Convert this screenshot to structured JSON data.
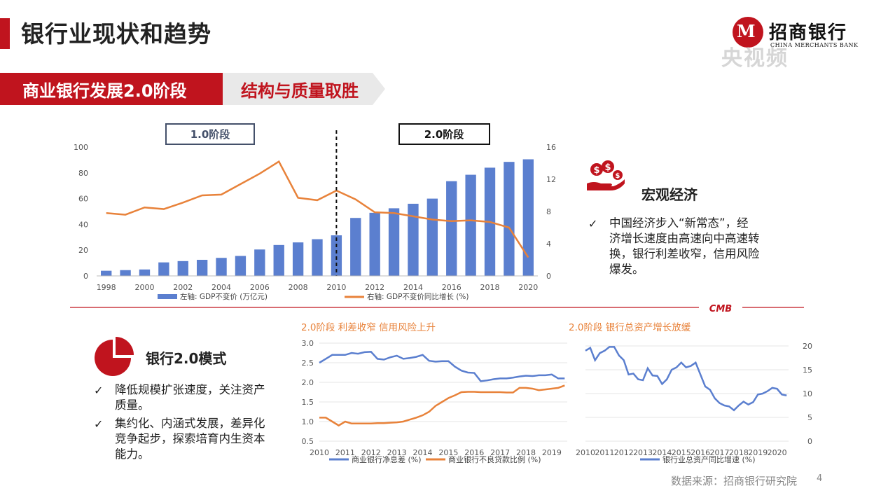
{
  "header": {
    "title": "银行业现状和趋势",
    "logo_cn": "招商银行",
    "logo_en": "CHINA MERCHANTS BANK",
    "watermark": "央视频"
  },
  "phase_banner": {
    "left_label": "商业银行发展2.0阶段",
    "right_label": "结构与质量取胜"
  },
  "macro": {
    "title": "宏观经济",
    "bullets": [
      [
        "中国经济步入“新常态”，经",
        "济增长速度由高速向中高速转",
        "换，银行利差收窄，信用风险",
        "爆发。"
      ]
    ]
  },
  "model": {
    "title": "银行2.0模式",
    "bullets": [
      [
        "降低规模扩张速度，关注资产",
        "质量。"
      ],
      [
        "集约化、内涵式发展，差异化",
        "竞争起步，探索培育内生资本",
        "能力。"
      ]
    ]
  },
  "divider": {
    "mark": "CMB"
  },
  "footer": {
    "source": "数据来源：招商银行研究院",
    "page": "4"
  },
  "colors": {
    "brand_red": "#c0141e",
    "blue": "#5b7fcf",
    "orange": "#e8823a"
  },
  "chart_data": [
    {
      "type": "bar+line",
      "stage_labels": [
        "1.0阶段",
        "2.0阶段"
      ],
      "divider_at": "2010",
      "categories": [
        "1998",
        "1999",
        "2000",
        "2001",
        "2002",
        "2003",
        "2004",
        "2005",
        "2006",
        "2007",
        "2008",
        "2009",
        "2010",
        "2011",
        "2012",
        "2013",
        "2014",
        "2015",
        "2016",
        "2017",
        "2018",
        "2019",
        "2020"
      ],
      "x_ticks": [
        "1998",
        "2000",
        "2002",
        "2004",
        "2006",
        "2008",
        "2010",
        "2012",
        "2014",
        "2016",
        "2018",
        "2020"
      ],
      "series": [
        {
          "name": "左轴: GDP不变价 (万亿元)",
          "axis": "left",
          "kind": "bar",
          "values": [
            4,
            4.5,
            5,
            10.5,
            11.5,
            12.5,
            14,
            15.5,
            20.5,
            24,
            26,
            28.5,
            31.5,
            45,
            49,
            52.5,
            56,
            60,
            73.5,
            78.5,
            84,
            88.5,
            90.5
          ]
        },
        {
          "name": "右轴: GDP不变价同比增长 (%)",
          "axis": "right",
          "kind": "line",
          "values": [
            7.8,
            7.6,
            8.5,
            8.3,
            9.1,
            10.0,
            10.1,
            11.4,
            12.7,
            14.2,
            9.7,
            9.4,
            10.6,
            9.5,
            7.9,
            7.8,
            7.4,
            7.0,
            6.8,
            6.9,
            6.7,
            6.0,
            2.3
          ]
        }
      ],
      "left_axis": {
        "ticks": [
          "0",
          "20",
          "40",
          "60",
          "80",
          "100"
        ],
        "range": [
          0,
          100
        ]
      },
      "right_axis": {
        "ticks": [
          "0",
          "4",
          "8",
          "12",
          "16"
        ],
        "range": [
          0,
          16
        ]
      }
    },
    {
      "type": "line",
      "title": "2.0阶段 利差收窄 信用风险上升",
      "x_ticks": [
        "2010",
        "2011",
        "2012",
        "2013",
        "2014",
        "2015",
        "2016",
        "2017",
        "2018",
        "2019"
      ],
      "x_range": [
        2010,
        2019.6
      ],
      "y_ticks": [
        "0.5",
        "1.0",
        "1.5",
        "2.0",
        "2.5",
        "3.0"
      ],
      "ylim": [
        0.5,
        3.0
      ],
      "series": [
        {
          "name": "商业银行净息差 (%)",
          "x": [
            2010.0,
            2010.25,
            2010.5,
            2010.75,
            2011.0,
            2011.25,
            2011.5,
            2011.75,
            2012.0,
            2012.25,
            2012.5,
            2012.75,
            2013.0,
            2013.25,
            2013.5,
            2013.75,
            2014.0,
            2014.25,
            2014.5,
            2014.75,
            2015.0,
            2015.25,
            2015.5,
            2015.75,
            2016.0,
            2016.25,
            2016.5,
            2016.75,
            2017.0,
            2017.25,
            2017.5,
            2017.75,
            2018.0,
            2018.25,
            2018.5,
            2018.75,
            2019.0,
            2019.25,
            2019.5
          ],
          "y": [
            2.5,
            2.6,
            2.7,
            2.7,
            2.7,
            2.75,
            2.73,
            2.77,
            2.78,
            2.6,
            2.58,
            2.64,
            2.68,
            2.6,
            2.62,
            2.65,
            2.7,
            2.55,
            2.53,
            2.54,
            2.54,
            2.4,
            2.3,
            2.25,
            2.24,
            2.03,
            2.05,
            2.08,
            2.1,
            2.1,
            2.12,
            2.15,
            2.17,
            2.16,
            2.18,
            2.18,
            2.2,
            2.1,
            2.1
          ]
        },
        {
          "name": "商业银行不良贷款比例 (%)",
          "x": [
            2010.0,
            2010.25,
            2010.5,
            2010.75,
            2011.0,
            2011.25,
            2011.5,
            2011.75,
            2012.0,
            2012.25,
            2012.5,
            2012.75,
            2013.0,
            2013.25,
            2013.5,
            2013.75,
            2014.0,
            2014.25,
            2014.5,
            2014.75,
            2015.0,
            2015.25,
            2015.5,
            2015.75,
            2016.0,
            2016.25,
            2016.5,
            2016.75,
            2017.0,
            2017.25,
            2017.5,
            2017.75,
            2018.0,
            2018.25,
            2018.5,
            2018.75,
            2019.0,
            2019.25,
            2019.5
          ],
          "y": [
            1.1,
            1.1,
            1.0,
            0.9,
            1.0,
            0.95,
            0.95,
            0.95,
            0.95,
            0.96,
            0.96,
            0.97,
            0.98,
            1.0,
            1.05,
            1.1,
            1.16,
            1.25,
            1.4,
            1.5,
            1.6,
            1.67,
            1.75,
            1.76,
            1.76,
            1.75,
            1.75,
            1.75,
            1.75,
            1.74,
            1.74,
            1.86,
            1.86,
            1.84,
            1.8,
            1.82,
            1.84,
            1.86,
            1.92
          ]
        }
      ]
    },
    {
      "type": "line",
      "title": "2.0阶段 银行总资产增长放缓",
      "x_ticks": [
        "2010",
        "2011",
        "2012",
        "2013",
        "2014",
        "2015",
        "2016",
        "2017",
        "2018",
        "2019",
        "2020"
      ],
      "x_range": [
        2010,
        2020.6
      ],
      "y_ticks": [
        "0",
        "5",
        "10",
        "15",
        "20"
      ],
      "ylim": [
        0,
        20
      ],
      "series": [
        {
          "name": "银行业总资产同比增速 (%)",
          "x": [
            2010.0,
            2010.25,
            2010.5,
            2010.75,
            2011.0,
            2011.25,
            2011.5,
            2011.75,
            2012.0,
            2012.25,
            2012.5,
            2012.75,
            2013.0,
            2013.25,
            2013.5,
            2013.75,
            2014.0,
            2014.25,
            2014.5,
            2014.75,
            2015.0,
            2015.25,
            2015.5,
            2015.75,
            2016.0,
            2016.25,
            2016.5,
            2016.75,
            2017.0,
            2017.25,
            2017.5,
            2017.75,
            2018.0,
            2018.25,
            2018.5,
            2018.75,
            2019.0,
            2019.25,
            2019.5,
            2019.75,
            2020.0,
            2020.25,
            2020.5
          ],
          "y": [
            19.0,
            19.6,
            17.0,
            18.5,
            19.0,
            19.8,
            19.8,
            18.0,
            17.0,
            14.0,
            14.2,
            13.0,
            12.8,
            15.3,
            13.8,
            13.7,
            12.0,
            13.0,
            15.0,
            15.5,
            16.5,
            15.5,
            15.8,
            16.5,
            14.0,
            11.5,
            10.8,
            9.0,
            8.0,
            7.5,
            7.3,
            6.5,
            7.5,
            8.3,
            7.7,
            8.2,
            9.8,
            10.0,
            10.5,
            11.2,
            11.0,
            9.8,
            9.6
          ]
        }
      ]
    }
  ]
}
